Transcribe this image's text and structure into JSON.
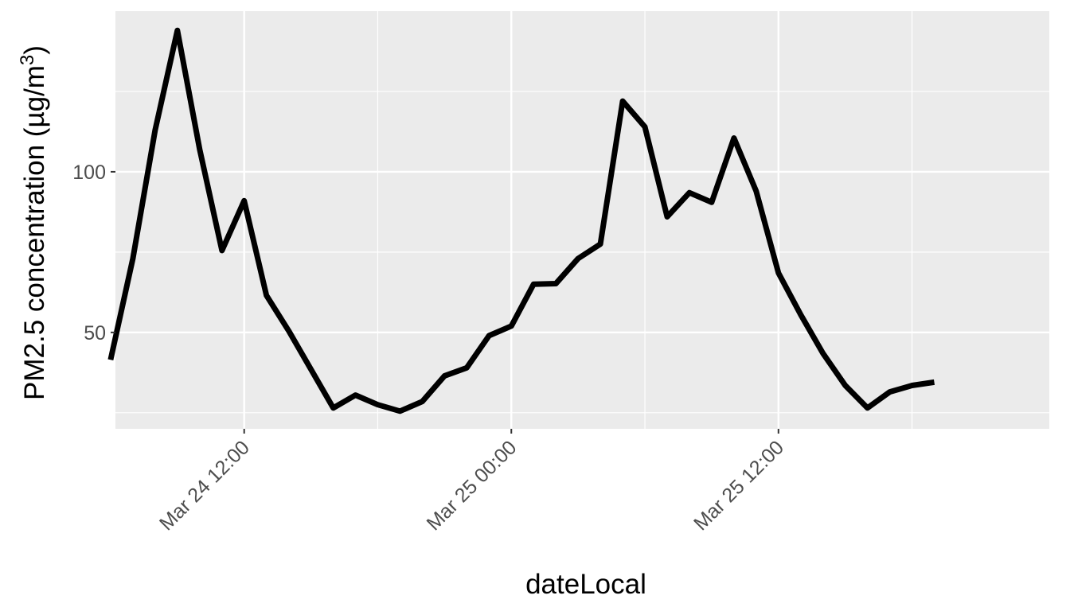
{
  "chart_data": {
    "type": "line",
    "title": "",
    "xlabel": "dateLocal",
    "ylabel": "PM2.5 concentration (µg/m",
    "ylabel_sup": "3",
    "ylabel_close": ")",
    "xlim": [
      "2024-03-24 06:13",
      "2024-03-26 00:10"
    ],
    "ylim": [
      20,
      150
    ],
    "x_ticks": [
      {
        "value": "2024-03-24 12:00",
        "label": "Mar 24 12:00"
      },
      {
        "value": "2024-03-25 00:00",
        "label": "Mar 25 00:00"
      },
      {
        "value": "2024-03-25 12:00",
        "label": "Mar 25 12:00"
      }
    ],
    "x_minor_ticks": [
      "2024-03-24 06:00",
      "2024-03-24 18:00",
      "2024-03-25 06:00",
      "2024-03-25 18:00"
    ],
    "y_ticks": [
      50,
      100
    ],
    "y_minor_ticks": [
      25,
      75,
      125
    ],
    "grid": true,
    "legend": "none",
    "colors": {
      "panel": "#ebebeb",
      "grid": "#ffffff",
      "line": "#000000",
      "tick_text": "#4d4d4d",
      "tick_mark": "#333333"
    },
    "series": [
      {
        "x": [
          "2024-03-24 06:00",
          "2024-03-24 07:00",
          "2024-03-24 08:00",
          "2024-03-24 09:00",
          "2024-03-24 10:00",
          "2024-03-24 11:00",
          "2024-03-24 12:00",
          "2024-03-24 13:00",
          "2024-03-24 14:00",
          "2024-03-24 15:00",
          "2024-03-24 16:00",
          "2024-03-24 17:00",
          "2024-03-24 18:00",
          "2024-03-24 19:00",
          "2024-03-24 20:00",
          "2024-03-24 21:00",
          "2024-03-24 22:00",
          "2024-03-24 23:00",
          "2024-03-25 00:00",
          "2024-03-25 01:00",
          "2024-03-25 02:00",
          "2024-03-25 03:00",
          "2024-03-25 04:00",
          "2024-03-25 05:00",
          "2024-03-25 06:00",
          "2024-03-25 07:00",
          "2024-03-25 08:00",
          "2024-03-25 09:00",
          "2024-03-25 10:00",
          "2024-03-25 11:00",
          "2024-03-25 12:00",
          "2024-03-25 13:00",
          "2024-03-25 14:00",
          "2024-03-25 15:00",
          "2024-03-25 16:00",
          "2024-03-25 17:00",
          "2024-03-25 18:00",
          "2024-03-25 19:00"
        ],
        "values": [
          41.5,
          73,
          113,
          144,
          107,
          75.5,
          91,
          61.5,
          50.5,
          38.5,
          26.5,
          30.5,
          27.5,
          25.5,
          28.5,
          36.5,
          39,
          49,
          52,
          65,
          65.2,
          73,
          77.5,
          122,
          114,
          86,
          93.5,
          90.5,
          110.5,
          94,
          68.5,
          55.5,
          43.5,
          33.5,
          26.5,
          31.5,
          33.5,
          34.5
        ]
      }
    ]
  }
}
